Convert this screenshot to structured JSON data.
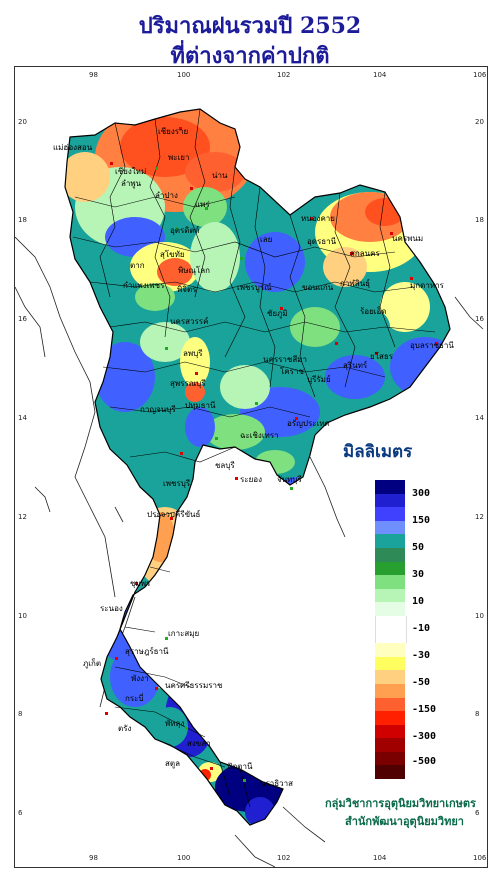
{
  "title": {
    "line1": "ปริมาณฝนรวมปี  2552",
    "line2": "ที่ต่างจากค่าปกติ"
  },
  "axes": {
    "lon_ticks": [
      "98",
      "100",
      "102",
      "104",
      "106"
    ],
    "lat_ticks": [
      "20",
      "18",
      "16",
      "14",
      "12",
      "10",
      "8",
      "6"
    ]
  },
  "legend": {
    "title": "มิลลิเมตร",
    "labels": [
      "300",
      "150",
      "50",
      "30",
      "10",
      "-10",
      "-30",
      "-50",
      "-150",
      "-300",
      "-500"
    ],
    "colors": [
      "#000080",
      "#2020d0",
      "#4040ff",
      "#6f8fff",
      "#1aa39a",
      "#2e8b57",
      "#28a030",
      "#7fe07f",
      "#b7f5b7",
      "#e4fde4",
      "#ffffff",
      "#ffffff",
      "#ffffc0",
      "#ffff60",
      "#ffd080",
      "#ffa050",
      "#ff6030",
      "#ff2000",
      "#d00000",
      "#a00000",
      "#7a0000",
      "#500000"
    ]
  },
  "provinces": [
    "เชียงราย",
    "แม่ฮ่องสอน",
    "เชียงใหม่",
    "ลำพูน",
    "พะเยา",
    "น่าน",
    "ลำปาง",
    "แพร่",
    "หนองคาย",
    "นครพนม",
    "สกลนคร",
    "อุดรธานี",
    "มุกดาหาร",
    "เลย",
    "อุตรดิตถ์",
    "ตาก",
    "พิษณุโลก",
    "สุโขทัย",
    "เพชรบูรณ์",
    "ขอนแก่น",
    "กำแพงเพชร",
    "พิจิตร",
    "นครสวรรค์",
    "ชัยภูมิ",
    "กาฬสินธุ์",
    "ร้อยเอ็ด",
    "อุบลราชธานี",
    "ยโสธร",
    "สุรินทร์",
    "ลพบุรี",
    "นครราชสีมา",
    "โคราช",
    "บุรีรัมย์",
    "สุพรรณบุรี",
    "กาญจนบุรี",
    "ปทุมธานี",
    "ฉะเชิงเทรา",
    "อรัญประเทศ",
    "ชลบุรี",
    "ระยอง",
    "จันทบุรี",
    "เพชรบุรี",
    "ประจวบคีรีขันธ์",
    "ชุมพร",
    "ระนอง",
    "สุราษฎร์ธานี",
    "เกาะสมุย",
    "ภูเก็ต",
    "พังงา",
    "กระบี่",
    "นครศรีธรรมราช",
    "ตรัง",
    "พัทลุง",
    "สงขลา",
    "สตูล",
    "ปัตตานี",
    "นราธิวาส"
  ],
  "credits": {
    "line1": "กลุ่มวิชาการอุตุนิยมวิทยาเกษตร",
    "line2": "สำนักพัฒนาอุตุนิยมวิทยา"
  }
}
